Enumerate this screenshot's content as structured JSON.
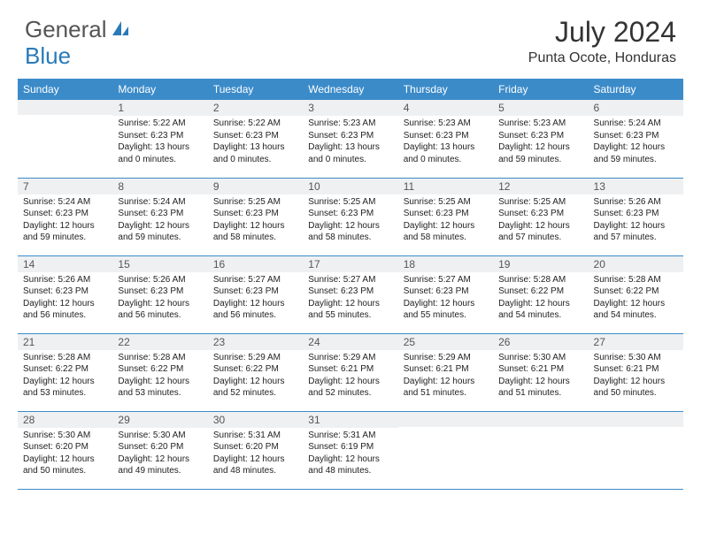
{
  "brand": {
    "part1": "General",
    "part2": "Blue"
  },
  "title": "July 2024",
  "location": "Punta Ocote, Honduras",
  "colors": {
    "header_bg": "#3b8bc9",
    "header_text": "#ffffff",
    "daynum_bg": "#eef0f2",
    "border": "#3b8bc9",
    "brand_blue": "#2a7ab8",
    "text": "#222222"
  },
  "day_headers": [
    "Sunday",
    "Monday",
    "Tuesday",
    "Wednesday",
    "Thursday",
    "Friday",
    "Saturday"
  ],
  "weeks": [
    [
      {
        "n": "",
        "sr": "",
        "ss": "",
        "dl": ""
      },
      {
        "n": "1",
        "sr": "5:22 AM",
        "ss": "6:23 PM",
        "dl": "13 hours and 0 minutes."
      },
      {
        "n": "2",
        "sr": "5:22 AM",
        "ss": "6:23 PM",
        "dl": "13 hours and 0 minutes."
      },
      {
        "n": "3",
        "sr": "5:23 AM",
        "ss": "6:23 PM",
        "dl": "13 hours and 0 minutes."
      },
      {
        "n": "4",
        "sr": "5:23 AM",
        "ss": "6:23 PM",
        "dl": "13 hours and 0 minutes."
      },
      {
        "n": "5",
        "sr": "5:23 AM",
        "ss": "6:23 PM",
        "dl": "12 hours and 59 minutes."
      },
      {
        "n": "6",
        "sr": "5:24 AM",
        "ss": "6:23 PM",
        "dl": "12 hours and 59 minutes."
      }
    ],
    [
      {
        "n": "7",
        "sr": "5:24 AM",
        "ss": "6:23 PM",
        "dl": "12 hours and 59 minutes."
      },
      {
        "n": "8",
        "sr": "5:24 AM",
        "ss": "6:23 PM",
        "dl": "12 hours and 59 minutes."
      },
      {
        "n": "9",
        "sr": "5:25 AM",
        "ss": "6:23 PM",
        "dl": "12 hours and 58 minutes."
      },
      {
        "n": "10",
        "sr": "5:25 AM",
        "ss": "6:23 PM",
        "dl": "12 hours and 58 minutes."
      },
      {
        "n": "11",
        "sr": "5:25 AM",
        "ss": "6:23 PM",
        "dl": "12 hours and 58 minutes."
      },
      {
        "n": "12",
        "sr": "5:25 AM",
        "ss": "6:23 PM",
        "dl": "12 hours and 57 minutes."
      },
      {
        "n": "13",
        "sr": "5:26 AM",
        "ss": "6:23 PM",
        "dl": "12 hours and 57 minutes."
      }
    ],
    [
      {
        "n": "14",
        "sr": "5:26 AM",
        "ss": "6:23 PM",
        "dl": "12 hours and 56 minutes."
      },
      {
        "n": "15",
        "sr": "5:26 AM",
        "ss": "6:23 PM",
        "dl": "12 hours and 56 minutes."
      },
      {
        "n": "16",
        "sr": "5:27 AM",
        "ss": "6:23 PM",
        "dl": "12 hours and 56 minutes."
      },
      {
        "n": "17",
        "sr": "5:27 AM",
        "ss": "6:23 PM",
        "dl": "12 hours and 55 minutes."
      },
      {
        "n": "18",
        "sr": "5:27 AM",
        "ss": "6:23 PM",
        "dl": "12 hours and 55 minutes."
      },
      {
        "n": "19",
        "sr": "5:28 AM",
        "ss": "6:22 PM",
        "dl": "12 hours and 54 minutes."
      },
      {
        "n": "20",
        "sr": "5:28 AM",
        "ss": "6:22 PM",
        "dl": "12 hours and 54 minutes."
      }
    ],
    [
      {
        "n": "21",
        "sr": "5:28 AM",
        "ss": "6:22 PM",
        "dl": "12 hours and 53 minutes."
      },
      {
        "n": "22",
        "sr": "5:28 AM",
        "ss": "6:22 PM",
        "dl": "12 hours and 53 minutes."
      },
      {
        "n": "23",
        "sr": "5:29 AM",
        "ss": "6:22 PM",
        "dl": "12 hours and 52 minutes."
      },
      {
        "n": "24",
        "sr": "5:29 AM",
        "ss": "6:21 PM",
        "dl": "12 hours and 52 minutes."
      },
      {
        "n": "25",
        "sr": "5:29 AM",
        "ss": "6:21 PM",
        "dl": "12 hours and 51 minutes."
      },
      {
        "n": "26",
        "sr": "5:30 AM",
        "ss": "6:21 PM",
        "dl": "12 hours and 51 minutes."
      },
      {
        "n": "27",
        "sr": "5:30 AM",
        "ss": "6:21 PM",
        "dl": "12 hours and 50 minutes."
      }
    ],
    [
      {
        "n": "28",
        "sr": "5:30 AM",
        "ss": "6:20 PM",
        "dl": "12 hours and 50 minutes."
      },
      {
        "n": "29",
        "sr": "5:30 AM",
        "ss": "6:20 PM",
        "dl": "12 hours and 49 minutes."
      },
      {
        "n": "30",
        "sr": "5:31 AM",
        "ss": "6:20 PM",
        "dl": "12 hours and 48 minutes."
      },
      {
        "n": "31",
        "sr": "5:31 AM",
        "ss": "6:19 PM",
        "dl": "12 hours and 48 minutes."
      },
      {
        "n": "",
        "sr": "",
        "ss": "",
        "dl": ""
      },
      {
        "n": "",
        "sr": "",
        "ss": "",
        "dl": ""
      },
      {
        "n": "",
        "sr": "",
        "ss": "",
        "dl": ""
      }
    ]
  ],
  "labels": {
    "sunrise": "Sunrise: ",
    "sunset": "Sunset: ",
    "daylight": "Daylight: "
  }
}
